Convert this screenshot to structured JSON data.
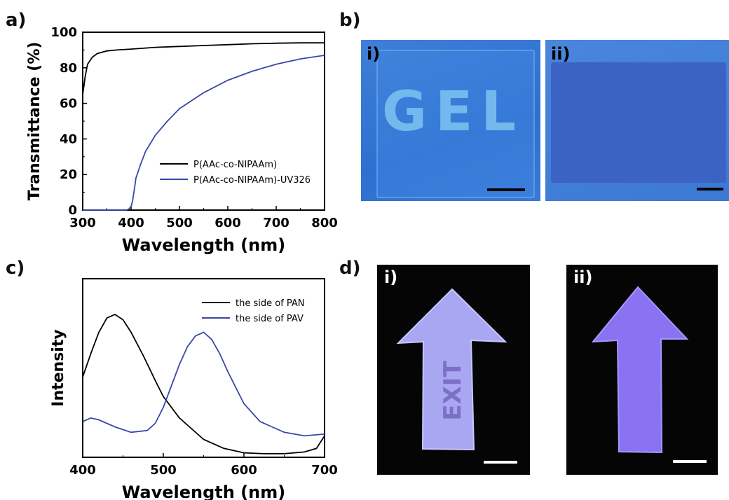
{
  "panels": {
    "a": "a)",
    "b": "b)",
    "c": "c)",
    "d": "d)"
  },
  "sub_labels": {
    "i": "i)",
    "ii": "ii)"
  },
  "photo_b_text": "GEL",
  "photo_d_text": "EXIT",
  "colors": {
    "black_series": "#000000",
    "blue_series": "#3a46a8"
  },
  "chart_data": [
    {
      "type": "line",
      "panel": "a",
      "xlabel": "Wavelength (nm)",
      "ylabel": "Transmittance (%)",
      "xlim": [
        300,
        800
      ],
      "ylim": [
        0,
        100
      ],
      "xticks": [
        300,
        400,
        500,
        600,
        700,
        800
      ],
      "yticks": [
        0,
        20,
        40,
        60,
        80,
        100
      ],
      "legend": "bottom-right",
      "series": [
        {
          "name": "P(AAc-co-NIPAAm)",
          "color": "black",
          "x": [
            300,
            305,
            310,
            320,
            330,
            350,
            370,
            400,
            450,
            500,
            550,
            600,
            650,
            700,
            750,
            800
          ],
          "y": [
            65,
            75,
            82,
            86,
            88,
            89.5,
            90,
            90.5,
            91.5,
            92,
            92.5,
            93,
            93.5,
            93.8,
            94,
            94
          ]
        },
        {
          "name": "P(AAc-co-NIPAAm)-UV326",
          "color": "blue",
          "x": [
            300,
            350,
            390,
            395,
            400,
            403,
            407,
            410,
            420,
            430,
            450,
            475,
            500,
            550,
            600,
            650,
            700,
            750,
            800
          ],
          "y": [
            0,
            0,
            0,
            0.5,
            2,
            5,
            12,
            18,
            26,
            33,
            42,
            50,
            57,
            66,
            73,
            78,
            82,
            85,
            87
          ]
        }
      ]
    },
    {
      "type": "line",
      "panel": "c",
      "xlabel": "Wavelength (nm)",
      "ylabel": "Intensity",
      "xlim": [
        400,
        700
      ],
      "xticks": [
        400,
        500,
        600,
        700
      ],
      "legend": "top-right",
      "series": [
        {
          "name": "the side of PAN",
          "color": "black",
          "x": [
            400,
            410,
            420,
            430,
            440,
            450,
            460,
            475,
            490,
            500,
            520,
            550,
            575,
            600,
            625,
            650,
            675,
            690,
            700
          ],
          "y": [
            0.45,
            0.58,
            0.7,
            0.78,
            0.8,
            0.77,
            0.7,
            0.57,
            0.43,
            0.34,
            0.22,
            0.1,
            0.05,
            0.025,
            0.02,
            0.02,
            0.03,
            0.05,
            0.12
          ]
        },
        {
          "name": "the side of PAV",
          "color": "blue",
          "x": [
            400,
            410,
            420,
            440,
            460,
            480,
            490,
            500,
            510,
            520,
            530,
            540,
            550,
            560,
            570,
            580,
            600,
            620,
            650,
            675,
            700
          ],
          "y": [
            0.2,
            0.22,
            0.21,
            0.17,
            0.14,
            0.15,
            0.19,
            0.28,
            0.4,
            0.52,
            0.62,
            0.68,
            0.7,
            0.66,
            0.58,
            0.48,
            0.3,
            0.2,
            0.14,
            0.12,
            0.13
          ]
        }
      ]
    }
  ]
}
